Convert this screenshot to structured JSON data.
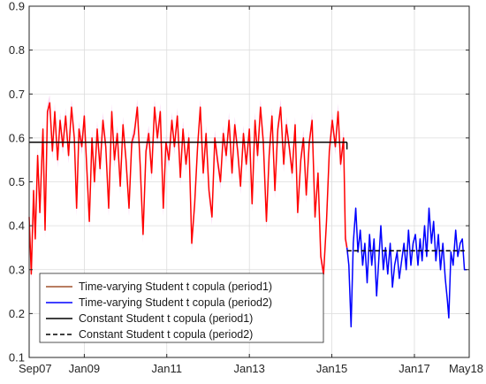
{
  "chart_data": {
    "type": "line",
    "title": "",
    "xlabel": "",
    "ylabel": "",
    "x_axis": {
      "type": "date",
      "range": [
        "2007-09-01",
        "2018-05-01"
      ],
      "ticks": [
        {
          "date": "2007-09-01",
          "label": "Sep07"
        },
        {
          "date": "2009-01-01",
          "label": "Jan09"
        },
        {
          "date": "2011-01-01",
          "label": "Jan11"
        },
        {
          "date": "2013-01-01",
          "label": "Jan13"
        },
        {
          "date": "2015-01-01",
          "label": "Jan15"
        },
        {
          "date": "2017-01-01",
          "label": "Jan17"
        },
        {
          "date": "2018-05-01",
          "label": "May18"
        }
      ]
    },
    "y_axis": {
      "range": [
        0.1,
        0.9
      ],
      "ticks": [
        0.1,
        0.2,
        0.3,
        0.4,
        0.5,
        0.6,
        0.7,
        0.8,
        0.9
      ]
    },
    "grid": true,
    "legend_position": "bottom-left",
    "series": [
      {
        "name": "Time-varying Student t copula (period1)",
        "style": "solid",
        "color": "#ff0000",
        "legend_color": "#a0522d",
        "points": [
          [
            "2007-09-01",
            0.42
          ],
          [
            "2007-09-20",
            0.29
          ],
          [
            "2007-10-10",
            0.48
          ],
          [
            "2007-10-25",
            0.37
          ],
          [
            "2007-11-15",
            0.56
          ],
          [
            "2007-12-05",
            0.43
          ],
          [
            "2008-01-01",
            0.62
          ],
          [
            "2008-01-20",
            0.39
          ],
          [
            "2008-02-10",
            0.66
          ],
          [
            "2008-03-01",
            0.68
          ],
          [
            "2008-03-25",
            0.57
          ],
          [
            "2008-04-15",
            0.66
          ],
          [
            "2008-05-10",
            0.55
          ],
          [
            "2008-06-01",
            0.64
          ],
          [
            "2008-06-25",
            0.58
          ],
          [
            "2008-07-20",
            0.65
          ],
          [
            "2008-08-15",
            0.56
          ],
          [
            "2008-09-10",
            0.67
          ],
          [
            "2008-10-05",
            0.6
          ],
          [
            "2008-10-25",
            0.44
          ],
          [
            "2008-11-15",
            0.62
          ],
          [
            "2008-12-10",
            0.58
          ],
          [
            "2009-01-01",
            0.65
          ],
          [
            "2009-01-25",
            0.52
          ],
          [
            "2009-02-15",
            0.41
          ],
          [
            "2009-03-10",
            0.6
          ],
          [
            "2009-04-01",
            0.5
          ],
          [
            "2009-04-25",
            0.62
          ],
          [
            "2009-05-20",
            0.53
          ],
          [
            "2009-06-15",
            0.64
          ],
          [
            "2009-07-10",
            0.58
          ],
          [
            "2009-08-05",
            0.44
          ],
          [
            "2009-09-01",
            0.66
          ],
          [
            "2009-09-25",
            0.55
          ],
          [
            "2009-10-20",
            0.61
          ],
          [
            "2009-11-15",
            0.49
          ],
          [
            "2009-12-10",
            0.63
          ],
          [
            "2010-01-05",
            0.55
          ],
          [
            "2010-02-01",
            0.44
          ],
          [
            "2010-02-25",
            0.59
          ],
          [
            "2010-03-20",
            0.61
          ],
          [
            "2010-04-15",
            0.67
          ],
          [
            "2010-05-10",
            0.54
          ],
          [
            "2010-06-05",
            0.38
          ],
          [
            "2010-07-01",
            0.57
          ],
          [
            "2010-07-25",
            0.61
          ],
          [
            "2010-08-20",
            0.52
          ],
          [
            "2010-09-15",
            0.67
          ],
          [
            "2010-10-10",
            0.6
          ],
          [
            "2010-11-05",
            0.66
          ],
          [
            "2010-12-01",
            0.44
          ],
          [
            "2010-12-25",
            0.59
          ],
          [
            "2011-01-20",
            0.55
          ],
          [
            "2011-02-15",
            0.64
          ],
          [
            "2011-03-10",
            0.58
          ],
          [
            "2011-04-05",
            0.65
          ],
          [
            "2011-05-01",
            0.51
          ],
          [
            "2011-05-25",
            0.62
          ],
          [
            "2011-06-20",
            0.54
          ],
          [
            "2011-07-15",
            0.6
          ],
          [
            "2011-08-10",
            0.36
          ],
          [
            "2011-09-05",
            0.45
          ],
          [
            "2011-10-01",
            0.58
          ],
          [
            "2011-10-25",
            0.67
          ],
          [
            "2011-11-20",
            0.52
          ],
          [
            "2011-12-15",
            0.61
          ],
          [
            "2012-01-10",
            0.48
          ],
          [
            "2012-02-05",
            0.42
          ],
          [
            "2012-03-01",
            0.6
          ],
          [
            "2012-03-25",
            0.55
          ],
          [
            "2012-04-20",
            0.5
          ],
          [
            "2012-05-15",
            0.61
          ],
          [
            "2012-06-10",
            0.56
          ],
          [
            "2012-07-05",
            0.64
          ],
          [
            "2012-08-01",
            0.52
          ],
          [
            "2012-08-25",
            0.63
          ],
          [
            "2012-09-20",
            0.57
          ],
          [
            "2012-10-15",
            0.49
          ],
          [
            "2012-11-10",
            0.61
          ],
          [
            "2012-12-05",
            0.54
          ],
          [
            "2013-01-01",
            0.62
          ],
          [
            "2013-01-25",
            0.45
          ],
          [
            "2013-02-20",
            0.64
          ],
          [
            "2013-03-15",
            0.56
          ],
          [
            "2013-04-10",
            0.67
          ],
          [
            "2013-05-05",
            0.59
          ],
          [
            "2013-06-01",
            0.41
          ],
          [
            "2013-06-25",
            0.56
          ],
          [
            "2013-07-20",
            0.65
          ],
          [
            "2013-08-15",
            0.48
          ],
          [
            "2013-09-10",
            0.62
          ],
          [
            "2013-10-05",
            0.67
          ],
          [
            "2013-11-01",
            0.54
          ],
          [
            "2013-11-25",
            0.63
          ],
          [
            "2013-12-20",
            0.58
          ],
          [
            "2014-01-15",
            0.52
          ],
          [
            "2014-02-10",
            0.63
          ],
          [
            "2014-03-05",
            0.43
          ],
          [
            "2014-04-01",
            0.55
          ],
          [
            "2014-04-25",
            0.6
          ],
          [
            "2014-05-20",
            0.47
          ],
          [
            "2014-06-15",
            0.59
          ],
          [
            "2014-07-10",
            0.64
          ],
          [
            "2014-08-05",
            0.42
          ],
          [
            "2014-09-01",
            0.52
          ],
          [
            "2014-09-25",
            0.33
          ],
          [
            "2014-10-20",
            0.29
          ],
          [
            "2014-11-15",
            0.41
          ],
          [
            "2014-12-10",
            0.57
          ],
          [
            "2015-01-05",
            0.64
          ],
          [
            "2015-02-01",
            0.58
          ],
          [
            "2015-02-25",
            0.66
          ],
          [
            "2015-03-20",
            0.54
          ],
          [
            "2015-04-15",
            0.6
          ],
          [
            "2015-05-01",
            0.37
          ],
          [
            "2015-05-15",
            0.35
          ]
        ]
      },
      {
        "name": "Time-varying Student t copula (period2)",
        "style": "solid",
        "color": "#0000ff",
        "points": [
          [
            "2015-05-15",
            0.35
          ],
          [
            "2015-06-01",
            0.31
          ],
          [
            "2015-06-20",
            0.17
          ],
          [
            "2015-07-10",
            0.36
          ],
          [
            "2015-08-01",
            0.44
          ],
          [
            "2015-08-20",
            0.34
          ],
          [
            "2015-09-10",
            0.39
          ],
          [
            "2015-10-01",
            0.31
          ],
          [
            "2015-10-20",
            0.36
          ],
          [
            "2015-11-10",
            0.27
          ],
          [
            "2015-12-01",
            0.38
          ],
          [
            "2015-12-20",
            0.31
          ],
          [
            "2016-01-10",
            0.37
          ],
          [
            "2016-02-01",
            0.24
          ],
          [
            "2016-02-20",
            0.32
          ],
          [
            "2016-03-10",
            0.4
          ],
          [
            "2016-04-01",
            0.3
          ],
          [
            "2016-04-20",
            0.35
          ],
          [
            "2016-05-10",
            0.29
          ],
          [
            "2016-06-01",
            0.36
          ],
          [
            "2016-06-20",
            0.26
          ],
          [
            "2016-07-10",
            0.31
          ],
          [
            "2016-08-01",
            0.34
          ],
          [
            "2016-08-20",
            0.28
          ],
          [
            "2016-09-10",
            0.32
          ],
          [
            "2016-10-01",
            0.36
          ],
          [
            "2016-10-20",
            0.3
          ],
          [
            "2016-11-10",
            0.39
          ],
          [
            "2016-12-01",
            0.31
          ],
          [
            "2016-12-20",
            0.36
          ],
          [
            "2017-01-10",
            0.38
          ],
          [
            "2017-02-01",
            0.31
          ],
          [
            "2017-02-20",
            0.37
          ],
          [
            "2017-03-10",
            0.32
          ],
          [
            "2017-04-01",
            0.4
          ],
          [
            "2017-04-20",
            0.33
          ],
          [
            "2017-05-10",
            0.44
          ],
          [
            "2017-06-01",
            0.36
          ],
          [
            "2017-06-20",
            0.41
          ],
          [
            "2017-07-10",
            0.32
          ],
          [
            "2017-08-01",
            0.38
          ],
          [
            "2017-08-20",
            0.3
          ],
          [
            "2017-09-10",
            0.36
          ],
          [
            "2017-10-01",
            0.28
          ],
          [
            "2017-10-20",
            0.23
          ],
          [
            "2017-11-01",
            0.19
          ],
          [
            "2017-11-20",
            0.34
          ],
          [
            "2017-12-10",
            0.31
          ],
          [
            "2018-01-01",
            0.39
          ],
          [
            "2018-01-20",
            0.33
          ],
          [
            "2018-02-10",
            0.36
          ],
          [
            "2018-03-01",
            0.37
          ],
          [
            "2018-03-20",
            0.3
          ],
          [
            "2018-04-10",
            0.3
          ]
        ]
      },
      {
        "name": "Constant Student t copula (period1)",
        "style": "solid",
        "color": "#000000",
        "points": [
          [
            "2007-09-01",
            0.59
          ],
          [
            "2015-05-15",
            0.59
          ]
        ]
      },
      {
        "name": "Constant Student t copula (period2)",
        "style": "dashed",
        "color": "#000000",
        "points": [
          [
            "2015-05-15",
            0.343
          ],
          [
            "2018-04-10",
            0.343
          ]
        ]
      }
    ],
    "colors": {
      "period1_band": "#f7c6f0",
      "grid": "#dcdcdc",
      "axis": "#262626"
    }
  }
}
